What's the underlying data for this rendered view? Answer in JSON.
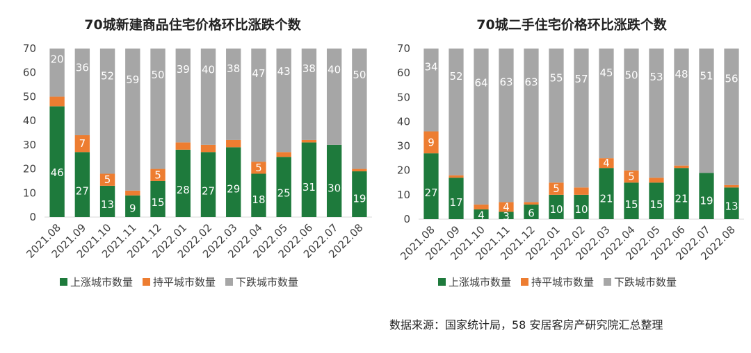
{
  "colors": {
    "up": "#1e7a3c",
    "flat": "#ed7d31",
    "down": "#a6a6a6",
    "axis": "#d9d9d9"
  },
  "legend": {
    "up": "上涨城市数量",
    "flat": "持平城市数量",
    "down": "下跌城市数量"
  },
  "source": "数据来源：国家统计局，58 安居客房产研究院汇总整理",
  "chart_data": [
    {
      "type": "bar",
      "stacked": true,
      "title": "70城新建商品住宅价格环比涨跌个数",
      "categories": [
        "2021.08",
        "2021.09",
        "2021.10",
        "2021.11",
        "2021.12",
        "2022.01",
        "2022.02",
        "2022.03",
        "2022.04",
        "2022.05",
        "2022.06",
        "2022.07",
        "2022.08"
      ],
      "ylim": [
        0,
        70
      ],
      "yticks": [
        0,
        10,
        20,
        30,
        40,
        50,
        60,
        70
      ],
      "series": [
        {
          "name": "上涨城市数量",
          "key": "up",
          "values": [
            46,
            27,
            13,
            9,
            15,
            28,
            27,
            29,
            18,
            25,
            31,
            30,
            19
          ]
        },
        {
          "name": "持平城市数量",
          "key": "flat",
          "values": [
            4,
            7,
            5,
            2,
            5,
            3,
            3,
            3,
            5,
            2,
            1,
            0,
            1
          ]
        },
        {
          "name": "下跌城市数量",
          "key": "down",
          "values": [
            20,
            36,
            52,
            59,
            50,
            39,
            40,
            38,
            47,
            43,
            38,
            40,
            50
          ]
        }
      ]
    },
    {
      "type": "bar",
      "stacked": true,
      "title": "70城二手住宅价格环比涨跌个数",
      "categories": [
        "2021.08",
        "2021.09",
        "2021.10",
        "2021.11",
        "2021.12",
        "2022.01",
        "2022.02",
        "2022.03",
        "2022.04",
        "2022.05",
        "2022.06",
        "2022.07",
        "2022.08"
      ],
      "ylim": [
        0,
        70
      ],
      "yticks": [
        0,
        10,
        20,
        30,
        40,
        50,
        60,
        70
      ],
      "series": [
        {
          "name": "上涨城市数量",
          "key": "up",
          "values": [
            27,
            17,
            4,
            3,
            6,
            10,
            10,
            21,
            15,
            15,
            21,
            19,
            13
          ]
        },
        {
          "name": "持平城市数量",
          "key": "flat",
          "values": [
            9,
            1,
            2,
            4,
            1,
            5,
            3,
            4,
            5,
            2,
            1,
            0,
            1
          ]
        },
        {
          "name": "下跌城市数量",
          "key": "down",
          "values": [
            34,
            52,
            64,
            63,
            63,
            55,
            57,
            45,
            50,
            53,
            48,
            51,
            56
          ]
        }
      ]
    }
  ]
}
